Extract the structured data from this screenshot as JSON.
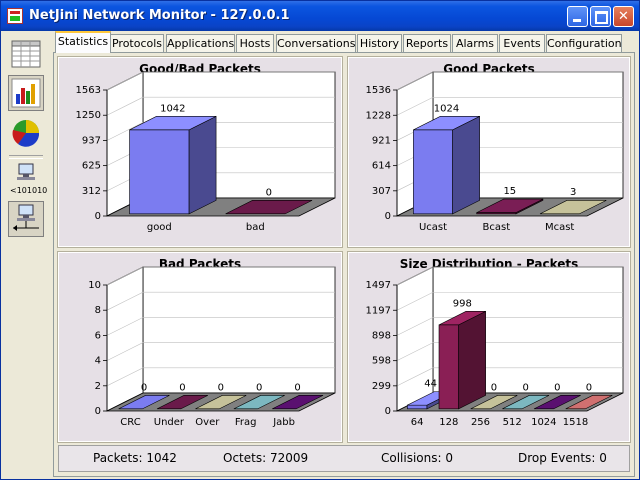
{
  "window": {
    "title": "NetJini Network Monitor - 127.0.0.1"
  },
  "toolbar": {
    "items": [
      {
        "icon": "table-icon",
        "selected": false
      },
      {
        "icon": "bar-chart-icon",
        "selected": true
      },
      {
        "icon": "pie-chart-icon",
        "selected": false
      },
      {
        "icon": "network-traffic-icon",
        "text": "<101010",
        "selected": false
      },
      {
        "icon": "network-connect-icon",
        "selected": true
      }
    ]
  },
  "tabs": [
    {
      "label": "Statistics",
      "active": true
    },
    {
      "label": "Protocols"
    },
    {
      "label": "Applications"
    },
    {
      "label": "Hosts"
    },
    {
      "label": "Conversations"
    },
    {
      "label": "History"
    },
    {
      "label": "Reports"
    },
    {
      "label": "Alarms"
    },
    {
      "label": "Events"
    },
    {
      "label": "Configuration"
    }
  ],
  "chart_data": [
    {
      "type": "bar",
      "title": "Good/Bad Packets",
      "categories": [
        "good",
        "bad"
      ],
      "values": [
        1042,
        0
      ],
      "yticks": [
        0,
        312,
        625,
        937,
        1250,
        1563
      ],
      "ylim": [
        0,
        1563
      ],
      "colors": [
        "#7b7cf0",
        "#6a1a4a"
      ]
    },
    {
      "type": "bar",
      "title": "Good Packets",
      "categories": [
        "Ucast",
        "Bcast",
        "Mcast"
      ],
      "values": [
        1024,
        15,
        3
      ],
      "yticks": [
        0,
        307,
        614,
        921,
        1228,
        1536
      ],
      "ylim": [
        0,
        1536
      ],
      "colors": [
        "#7b7cf0",
        "#6a1a4a",
        "#c6c29a"
      ]
    },
    {
      "type": "bar",
      "title": "Bad Packets",
      "categories": [
        "CRC",
        "Under",
        "Over",
        "Frag",
        "Jabb"
      ],
      "values": [
        0,
        0,
        0,
        0,
        0
      ],
      "yticks": [
        0,
        2,
        4,
        6,
        8,
        10
      ],
      "ylim": [
        0,
        10
      ],
      "colors": [
        "#7b7cf0",
        "#6a1a4a",
        "#c6c29a",
        "#7cb8c0",
        "#5a1070"
      ]
    },
    {
      "type": "bar",
      "title": "Size Distribution - Packets",
      "categories": [
        "64",
        "128",
        "256",
        "512",
        "1024",
        "1518"
      ],
      "values": [
        44,
        998,
        0,
        0,
        0,
        0
      ],
      "yticks": [
        0,
        299,
        598,
        898,
        1197,
        1497
      ],
      "ylim": [
        0,
        1497
      ],
      "colors": [
        "#7b7cf0",
        "#8a1f55",
        "#c6c29a",
        "#7cb8c0",
        "#5a1070",
        "#d07070"
      ]
    }
  ],
  "status": {
    "packets": {
      "label": "Packets:",
      "value": "1042"
    },
    "octets": {
      "label": "Octets:",
      "value": "72009"
    },
    "collisions": {
      "label": "Collisions:",
      "value": "0"
    },
    "drop_events": {
      "label": "Drop Events:",
      "value": "0"
    }
  }
}
